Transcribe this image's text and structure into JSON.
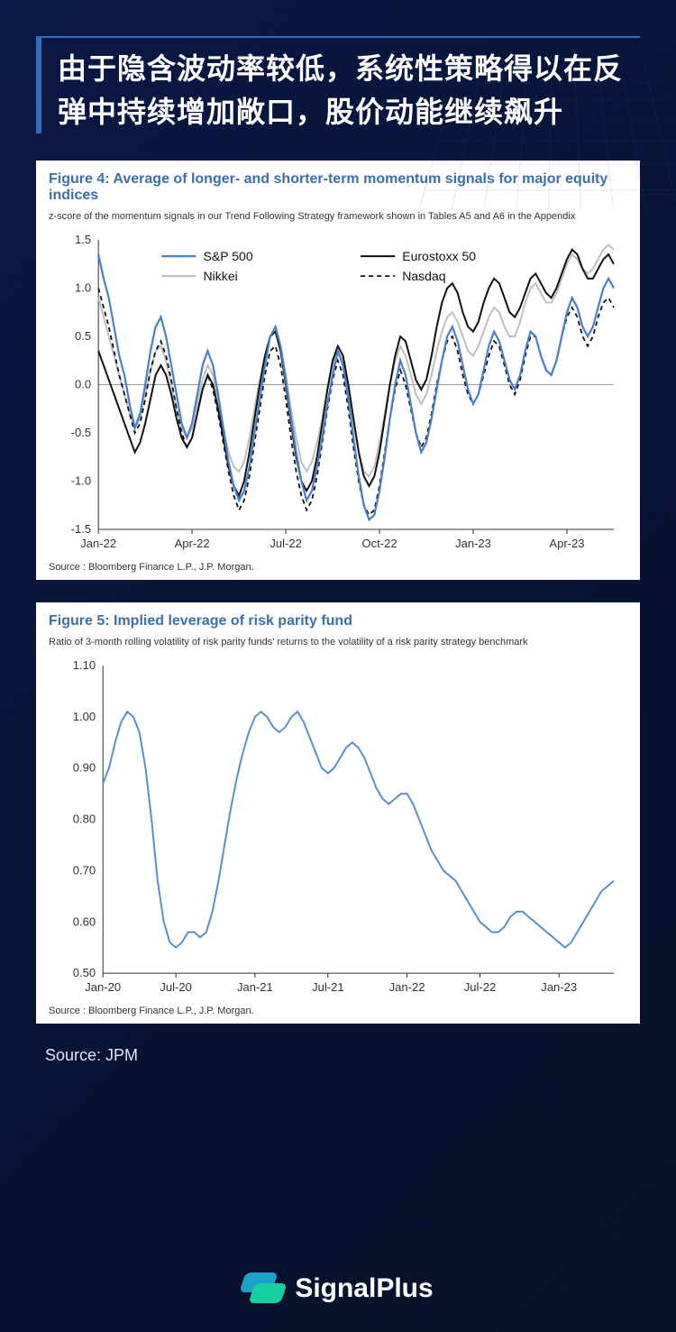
{
  "page": {
    "headline": "由于隐含波动率较低，系统性策略得以在反弹中持续增加敞口，股价动能继续飙升",
    "source_label": "Source: JPM",
    "brand": "SignalPlus"
  },
  "figure4": {
    "type": "line",
    "title": "Figure 4: Average of longer- and shorter-term momentum signals for major equity indices",
    "subtitle": "z-score of the momentum signals in our Trend Following Strategy framework shown in Tables A5 and A6 in the Appendix",
    "source": "Source : Bloomberg Finance L.P., J.P. Morgan.",
    "background_color": "#ffffff",
    "axis_color": "#333333",
    "axis_fontsize": 13,
    "ylim": [
      -1.5,
      1.5
    ],
    "yticks": [
      -1.5,
      -1.0,
      -0.5,
      0.0,
      0.5,
      1.0,
      1.5
    ],
    "xticks": [
      "Jan-22",
      "Apr-22",
      "Jul-22",
      "Oct-22",
      "Jan-23",
      "Apr-23"
    ],
    "xtick_positions": [
      0,
      18,
      36,
      54,
      72,
      90
    ],
    "x_count": 100,
    "zero_line_color": "#999999",
    "legend": [
      {
        "label": "S&P 500",
        "color": "#4a7fc8",
        "dash": "none",
        "width": 2.2
      },
      {
        "label": "Nikkei",
        "color": "#bfbfbf",
        "dash": "none",
        "width": 2.0
      },
      {
        "label": "Eurostoxx 50",
        "color": "#111111",
        "dash": "none",
        "width": 2.0
      },
      {
        "label": "Nasdaq",
        "color": "#111111",
        "dash": "5,4",
        "width": 1.8
      }
    ],
    "series": {
      "sp500": [
        1.35,
        1.1,
        0.9,
        0.6,
        0.3,
        0.1,
        -0.2,
        -0.45,
        -0.3,
        0.0,
        0.35,
        0.6,
        0.7,
        0.5,
        0.2,
        -0.1,
        -0.4,
        -0.55,
        -0.4,
        -0.1,
        0.2,
        0.35,
        0.2,
        -0.1,
        -0.45,
        -0.8,
        -1.05,
        -1.2,
        -1.1,
        -0.85,
        -0.5,
        -0.15,
        0.2,
        0.5,
        0.6,
        0.4,
        0.05,
        -0.35,
        -0.7,
        -1.0,
        -1.2,
        -1.1,
        -0.85,
        -0.55,
        -0.2,
        0.1,
        0.35,
        0.2,
        -0.15,
        -0.55,
        -0.95,
        -1.25,
        -1.4,
        -1.35,
        -1.1,
        -0.75,
        -0.35,
        0.0,
        0.25,
        0.1,
        -0.2,
        -0.5,
        -0.7,
        -0.6,
        -0.35,
        -0.05,
        0.25,
        0.5,
        0.6,
        0.45,
        0.2,
        -0.05,
        -0.2,
        -0.1,
        0.15,
        0.4,
        0.55,
        0.45,
        0.25,
        0.05,
        -0.05,
        0.1,
        0.35,
        0.55,
        0.5,
        0.3,
        0.15,
        0.1,
        0.25,
        0.5,
        0.75,
        0.9,
        0.8,
        0.6,
        0.5,
        0.6,
        0.8,
        1.0,
        1.1,
        1.0
      ],
      "nikkei": [
        0.9,
        0.7,
        0.5,
        0.3,
        0.1,
        -0.1,
        -0.3,
        -0.45,
        -0.35,
        -0.1,
        0.15,
        0.35,
        0.4,
        0.25,
        0.0,
        -0.25,
        -0.45,
        -0.55,
        -0.45,
        -0.2,
        0.05,
        0.2,
        0.1,
        -0.15,
        -0.45,
        -0.7,
        -0.85,
        -0.9,
        -0.8,
        -0.55,
        -0.25,
        0.05,
        0.3,
        0.5,
        0.55,
        0.4,
        0.1,
        -0.25,
        -0.55,
        -0.8,
        -0.9,
        -0.8,
        -0.6,
        -0.35,
        -0.05,
        0.2,
        0.35,
        0.25,
        -0.05,
        -0.4,
        -0.7,
        -0.9,
        -0.95,
        -0.85,
        -0.6,
        -0.3,
        0.0,
        0.25,
        0.4,
        0.3,
        0.1,
        -0.1,
        -0.2,
        -0.1,
        0.1,
        0.35,
        0.55,
        0.7,
        0.75,
        0.65,
        0.5,
        0.35,
        0.3,
        0.4,
        0.55,
        0.7,
        0.8,
        0.75,
        0.6,
        0.5,
        0.5,
        0.65,
        0.85,
        1.0,
        1.05,
        0.95,
        0.85,
        0.85,
        0.95,
        1.1,
        1.25,
        1.35,
        1.3,
        1.2,
        1.15,
        1.2,
        1.3,
        1.4,
        1.45,
        1.4
      ],
      "eurostoxx": [
        0.35,
        0.2,
        0.05,
        -0.1,
        -0.25,
        -0.4,
        -0.55,
        -0.7,
        -0.6,
        -0.4,
        -0.15,
        0.1,
        0.2,
        0.1,
        -0.1,
        -0.35,
        -0.55,
        -0.65,
        -0.55,
        -0.3,
        -0.05,
        0.1,
        0.0,
        -0.25,
        -0.55,
        -0.85,
        -1.05,
        -1.15,
        -1.0,
        -0.7,
        -0.35,
        0.0,
        0.3,
        0.5,
        0.55,
        0.35,
        0.0,
        -0.4,
        -0.75,
        -1.0,
        -1.1,
        -1.0,
        -0.75,
        -0.4,
        -0.05,
        0.25,
        0.4,
        0.3,
        0.0,
        -0.35,
        -0.7,
        -0.95,
        -1.05,
        -0.95,
        -0.7,
        -0.35,
        0.0,
        0.3,
        0.5,
        0.45,
        0.25,
        0.05,
        -0.05,
        0.05,
        0.3,
        0.6,
        0.85,
        1.0,
        1.05,
        0.95,
        0.75,
        0.6,
        0.55,
        0.65,
        0.85,
        1.0,
        1.1,
        1.05,
        0.9,
        0.75,
        0.7,
        0.8,
        0.95,
        1.1,
        1.15,
        1.05,
        0.95,
        0.9,
        1.0,
        1.15,
        1.3,
        1.4,
        1.35,
        1.2,
        1.1,
        1.1,
        1.2,
        1.3,
        1.35,
        1.25
      ],
      "nasdaq": [
        1.0,
        0.8,
        0.6,
        0.35,
        0.1,
        -0.1,
        -0.3,
        -0.5,
        -0.4,
        -0.15,
        0.15,
        0.35,
        0.45,
        0.3,
        0.05,
        -0.25,
        -0.5,
        -0.65,
        -0.55,
        -0.3,
        -0.05,
        0.1,
        -0.05,
        -0.3,
        -0.6,
        -0.9,
        -1.15,
        -1.3,
        -1.2,
        -0.95,
        -0.6,
        -0.25,
        0.1,
        0.35,
        0.4,
        0.2,
        -0.15,
        -0.55,
        -0.9,
        -1.15,
        -1.3,
        -1.2,
        -0.95,
        -0.6,
        -0.25,
        0.05,
        0.25,
        0.1,
        -0.25,
        -0.65,
        -1.0,
        -1.25,
        -1.35,
        -1.3,
        -1.05,
        -0.7,
        -0.35,
        -0.05,
        0.15,
        0.0,
        -0.25,
        -0.5,
        -0.65,
        -0.55,
        -0.3,
        0.0,
        0.25,
        0.45,
        0.5,
        0.35,
        0.1,
        -0.1,
        -0.2,
        -0.1,
        0.1,
        0.3,
        0.45,
        0.4,
        0.2,
        0.0,
        -0.1,
        0.05,
        0.3,
        0.5,
        0.5,
        0.3,
        0.15,
        0.1,
        0.25,
        0.5,
        0.7,
        0.8,
        0.7,
        0.5,
        0.4,
        0.5,
        0.7,
        0.85,
        0.9,
        0.8
      ]
    }
  },
  "figure5": {
    "type": "line",
    "title": "Figure 5: Implied leverage of risk parity fund",
    "subtitle": "Ratio of 3-month rolling volatility of risk parity funds' returns to the volatility of a risk parity strategy benchmark",
    "source": "Source : Bloomberg Finance L.P., J.P. Morgan.",
    "background_color": "#ffffff",
    "line_color": "#5b8fc7",
    "line_width": 2.0,
    "axis_color": "#333333",
    "axis_fontsize": 13,
    "ylim": [
      0.5,
      1.1
    ],
    "yticks": [
      0.5,
      0.6,
      0.7,
      0.8,
      0.9,
      1.0,
      1.1
    ],
    "xticks": [
      "Jan-20",
      "Jul-20",
      "Jan-21",
      "Jul-21",
      "Jan-22",
      "Jul-22",
      "Jan-23"
    ],
    "xtick_positions": [
      0,
      12,
      25,
      37,
      50,
      62,
      75
    ],
    "x_count": 85,
    "values": [
      0.87,
      0.9,
      0.95,
      0.99,
      1.01,
      1.0,
      0.97,
      0.9,
      0.8,
      0.68,
      0.6,
      0.56,
      0.55,
      0.56,
      0.58,
      0.58,
      0.57,
      0.58,
      0.62,
      0.68,
      0.75,
      0.82,
      0.88,
      0.93,
      0.97,
      1.0,
      1.01,
      1.0,
      0.98,
      0.97,
      0.98,
      1.0,
      1.01,
      0.99,
      0.96,
      0.93,
      0.9,
      0.89,
      0.9,
      0.92,
      0.94,
      0.95,
      0.94,
      0.92,
      0.89,
      0.86,
      0.84,
      0.83,
      0.84,
      0.85,
      0.85,
      0.83,
      0.8,
      0.77,
      0.74,
      0.72,
      0.7,
      0.69,
      0.68,
      0.66,
      0.64,
      0.62,
      0.6,
      0.59,
      0.58,
      0.58,
      0.59,
      0.61,
      0.62,
      0.62,
      0.61,
      0.6,
      0.59,
      0.58,
      0.57,
      0.56,
      0.55,
      0.56,
      0.58,
      0.6,
      0.62,
      0.64,
      0.66,
      0.67,
      0.68
    ]
  }
}
